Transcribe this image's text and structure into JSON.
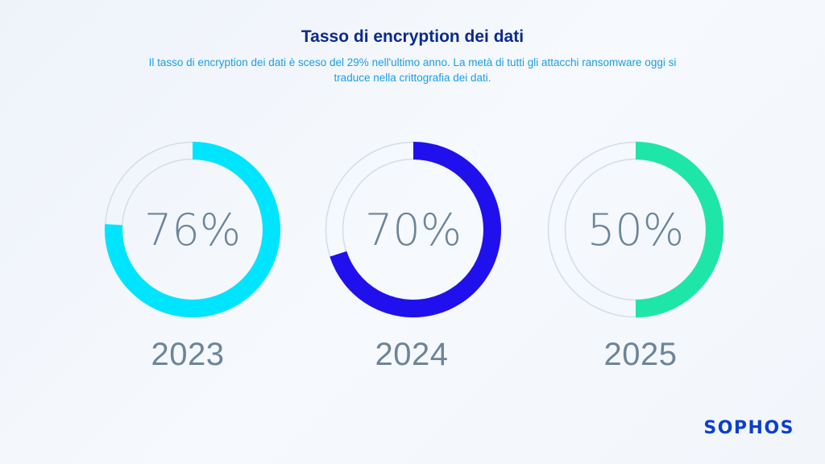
{
  "title": "Tasso di encryption dei dati",
  "subtitle_line1": "Il tasso di encryption dei dati  è sceso del 29% nell'ultimo anno. La metà di tutti gli attacchi ransomware oggi si",
  "subtitle_line2": "traduce nella crittografia dei dati.",
  "logo": "SOPHOS",
  "colors": {
    "track": "#d3dde6",
    "text": "#6b8599"
  },
  "chart_data": {
    "type": "donut",
    "categories": [
      "2023",
      "2024",
      "2025"
    ],
    "values": [
      76,
      70,
      50
    ],
    "labels": [
      "76%",
      "70%",
      "50%"
    ],
    "colors": [
      "#00e5ff",
      "#2010ee",
      "#1ee6a8"
    ]
  }
}
